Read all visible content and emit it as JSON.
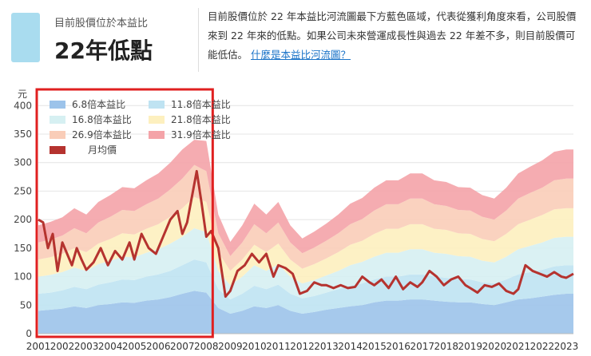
{
  "header": {
    "subtitle": "目前股價位於本益比",
    "headline": "22年低點",
    "description": "目前股價位於 22 年本益比河流圖最下方藍色區域，代表從獲利角度來看，公司股價來到 22 年來的低點。如果公司未來營運成長性與過去 22 年差不多，則目前股價可能低估。",
    "link_text": "什麼是本益比河流圖？",
    "swatch_color": "#a9dcef"
  },
  "chart_data": {
    "type": "area",
    "ylabel": "元",
    "ylim": [
      0,
      420
    ],
    "yticks": [
      0,
      50,
      100,
      150,
      200,
      250,
      300,
      350,
      400
    ],
    "x_ticks": [
      "2001",
      "2002",
      "2003",
      "2004",
      "2005",
      "2006",
      "2007",
      "2008",
      "2009",
      "2010",
      "2011",
      "2012",
      "2013",
      "2014",
      "2015",
      "2016",
      "2017",
      "2018",
      "2019",
      "2020",
      "2021",
      "2022",
      "2023"
    ],
    "xlim": [
      2001,
      2023.3
    ],
    "grid": true,
    "legend_position": "top-left",
    "highlight": {
      "x_from": 2001,
      "x_to": 2008.2,
      "color": "#e02020"
    },
    "band_colors": [
      "#9cc3ea",
      "#bfe3f2",
      "#d6f0f2",
      "#fdf0bf",
      "#f9cdb8",
      "#f4a3a8"
    ],
    "series": [
      {
        "name": "6.8倍本益比",
        "color": "#9cc3ea",
        "x": [
          2001,
          2001.5,
          2002,
          2002.5,
          2003,
          2003.5,
          2004,
          2004.5,
          2005,
          2005.5,
          2006,
          2006.5,
          2007,
          2007.5,
          2008,
          2008.5,
          2009,
          2009.5,
          2010,
          2010.5,
          2011,
          2011.5,
          2012,
          2012.5,
          2013,
          2013.5,
          2014,
          2014.5,
          2015,
          2015.5,
          2016,
          2016.5,
          2017,
          2017.5,
          2018,
          2018.5,
          2019,
          2019.5,
          2020,
          2020.5,
          2021,
          2021.5,
          2022,
          2022.5,
          2023,
          2023.3
        ],
        "values": [
          40,
          42,
          44,
          48,
          45,
          50,
          52,
          55,
          54,
          58,
          60,
          64,
          70,
          75,
          72,
          45,
          35,
          40,
          48,
          45,
          50,
          40,
          35,
          38,
          42,
          45,
          48,
          50,
          55,
          58,
          58,
          60,
          60,
          58,
          56,
          55,
          55,
          52,
          50,
          55,
          60,
          62,
          65,
          68,
          70,
          70
        ]
      },
      {
        "name": "11.8倍本益比",
        "color": "#bfe3f2",
        "x": [
          2001,
          2001.5,
          2002,
          2002.5,
          2003,
          2003.5,
          2004,
          2004.5,
          2005,
          2005.5,
          2006,
          2006.5,
          2007,
          2007.5,
          2008,
          2008.5,
          2009,
          2009.5,
          2010,
          2010.5,
          2011,
          2011.5,
          2012,
          2012.5,
          2013,
          2013.5,
          2014,
          2014.5,
          2015,
          2015.5,
          2016,
          2016.5,
          2017,
          2017.5,
          2018,
          2018.5,
          2019,
          2019.5,
          2020,
          2020.5,
          2021,
          2021.5,
          2022,
          2022.5,
          2023,
          2023.3
        ],
        "values": [
          70,
          72,
          76,
          82,
          78,
          86,
          90,
          95,
          94,
          100,
          104,
          110,
          120,
          130,
          125,
          78,
          60,
          70,
          84,
          78,
          86,
          70,
          62,
          66,
          72,
          78,
          84,
          88,
          95,
          100,
          100,
          104,
          104,
          100,
          98,
          96,
          95,
          90,
          88,
          95,
          104,
          108,
          112,
          118,
          120,
          120
        ]
      },
      {
        "name": "16.8倍本益比",
        "color": "#d6f0f2",
        "x": [
          2001,
          2001.5,
          2002,
          2002.5,
          2003,
          2003.5,
          2004,
          2004.5,
          2005,
          2005.5,
          2006,
          2006.5,
          2007,
          2007.5,
          2008,
          2008.5,
          2009,
          2009.5,
          2010,
          2010.5,
          2011,
          2011.5,
          2012,
          2012.5,
          2013,
          2013.5,
          2014,
          2014.5,
          2015,
          2015.5,
          2016,
          2016.5,
          2017,
          2017.5,
          2018,
          2018.5,
          2019,
          2019.5,
          2020,
          2020.5,
          2021,
          2021.5,
          2022,
          2022.5,
          2023,
          2023.3
        ],
        "values": [
          100,
          103,
          108,
          116,
          110,
          122,
          128,
          135,
          134,
          142,
          148,
          158,
          170,
          185,
          178,
          110,
          85,
          100,
          120,
          110,
          122,
          100,
          88,
          94,
          102,
          110,
          120,
          126,
          135,
          142,
          142,
          148,
          148,
          142,
          140,
          136,
          135,
          128,
          125,
          135,
          148,
          154,
          160,
          168,
          170,
          170
        ]
      },
      {
        "name": "21.8倍本益比",
        "color": "#fdf0bf",
        "x": [
          2001,
          2001.5,
          2002,
          2002.5,
          2003,
          2003.5,
          2004,
          2004.5,
          2005,
          2005.5,
          2006,
          2006.5,
          2007,
          2007.5,
          2008,
          2008.5,
          2009,
          2009.5,
          2010,
          2010.5,
          2011,
          2011.5,
          2012,
          2012.5,
          2013,
          2013.5,
          2014,
          2014.5,
          2015,
          2015.5,
          2016,
          2016.5,
          2017,
          2017.5,
          2018,
          2018.5,
          2019,
          2019.5,
          2020,
          2020.5,
          2021,
          2021.5,
          2022,
          2022.5,
          2023,
          2023.3
        ],
        "values": [
          130,
          134,
          140,
          150,
          143,
          158,
          166,
          176,
          174,
          184,
          192,
          205,
          220,
          240,
          231,
          143,
          110,
          130,
          156,
          143,
          158,
          130,
          114,
          122,
          132,
          143,
          156,
          163,
          175,
          184,
          184,
          192,
          192,
          184,
          182,
          176,
          175,
          166,
          162,
          175,
          192,
          200,
          208,
          218,
          220,
          220
        ]
      },
      {
        "name": "26.9倍本益比",
        "color": "#f9cdb8",
        "x": [
          2001,
          2001.5,
          2002,
          2002.5,
          2003,
          2003.5,
          2004,
          2004.5,
          2005,
          2005.5,
          2006,
          2006.5,
          2007,
          2007.5,
          2008,
          2008.5,
          2009,
          2009.5,
          2010,
          2010.5,
          2011,
          2011.5,
          2012,
          2012.5,
          2013,
          2013.5,
          2014,
          2014.5,
          2015,
          2015.5,
          2016,
          2016.5,
          2017,
          2017.5,
          2018,
          2018.5,
          2019,
          2019.5,
          2020,
          2020.5,
          2021,
          2021.5,
          2022,
          2022.5,
          2023,
          2023.3
        ],
        "values": [
          160,
          165,
          172,
          185,
          176,
          195,
          205,
          217,
          215,
          227,
          237,
          253,
          272,
          296,
          285,
          176,
          136,
          160,
          192,
          176,
          195,
          160,
          141,
          151,
          163,
          176,
          192,
          201,
          216,
          227,
          227,
          237,
          237,
          227,
          224,
          217,
          216,
          205,
          200,
          216,
          237,
          247,
          256,
          269,
          272,
          272
        ]
      },
      {
        "name": "31.9倍本益比",
        "color": "#f4a3a8",
        "x": [
          2001,
          2001.5,
          2002,
          2002.5,
          2003,
          2003.5,
          2004,
          2004.5,
          2005,
          2005.5,
          2006,
          2006.5,
          2007,
          2007.5,
          2008,
          2008.5,
          2009,
          2009.5,
          2010,
          2010.5,
          2011,
          2011.5,
          2012,
          2012.5,
          2013,
          2013.5,
          2014,
          2014.5,
          2015,
          2015.5,
          2016,
          2016.5,
          2017,
          2017.5,
          2018,
          2018.5,
          2019,
          2019.5,
          2020,
          2020.5,
          2021,
          2021.5,
          2022,
          2022.5,
          2023,
          2023.3
        ],
        "values": [
          190,
          196,
          204,
          220,
          209,
          231,
          243,
          257,
          255,
          269,
          281,
          300,
          323,
          340,
          338,
          209,
          161,
          190,
          228,
          209,
          231,
          190,
          167,
          179,
          193,
          209,
          228,
          238,
          256,
          269,
          269,
          281,
          281,
          269,
          266,
          257,
          256,
          243,
          237,
          256,
          281,
          293,
          304,
          319,
          323,
          323
        ]
      },
      {
        "name": "月均價",
        "color": "#b5332f",
        "x": [
          2001,
          2001.2,
          2001.4,
          2001.6,
          2001.8,
          2002,
          2002.2,
          2002.4,
          2002.6,
          2002.8,
          2003,
          2003.3,
          2003.6,
          2003.9,
          2004.2,
          2004.5,
          2004.8,
          2005,
          2005.3,
          2005.6,
          2005.9,
          2006.2,
          2006.5,
          2006.8,
          2007,
          2007.2,
          2007.4,
          2007.6,
          2007.8,
          2008,
          2008.2,
          2008.5,
          2008.8,
          2009,
          2009.3,
          2009.6,
          2009.9,
          2010.2,
          2010.5,
          2010.8,
          2011,
          2011.3,
          2011.6,
          2011.9,
          2012.2,
          2012.5,
          2012.8,
          2013,
          2013.3,
          2013.6,
          2013.9,
          2014.2,
          2014.5,
          2014.8,
          2015,
          2015.3,
          2015.6,
          2015.9,
          2016.2,
          2016.5,
          2016.8,
          2017,
          2017.3,
          2017.6,
          2017.9,
          2018.2,
          2018.5,
          2018.8,
          2019,
          2019.3,
          2019.6,
          2019.9,
          2020.2,
          2020.5,
          2020.8,
          2021,
          2021.3,
          2021.6,
          2021.9,
          2022.2,
          2022.5,
          2022.8,
          2023,
          2023.3
        ],
        "values": [
          200,
          195,
          150,
          175,
          110,
          160,
          140,
          120,
          150,
          130,
          112,
          125,
          150,
          120,
          145,
          130,
          160,
          130,
          175,
          150,
          140,
          170,
          200,
          215,
          175,
          195,
          240,
          285,
          230,
          170,
          180,
          150,
          65,
          75,
          110,
          120,
          140,
          125,
          140,
          100,
          120,
          115,
          105,
          70,
          75,
          90,
          85,
          85,
          80,
          85,
          80,
          82,
          100,
          90,
          85,
          95,
          80,
          100,
          78,
          90,
          82,
          90,
          110,
          100,
          85,
          95,
          100,
          85,
          80,
          72,
          85,
          82,
          88,
          75,
          70,
          78,
          120,
          110,
          105,
          100,
          108,
          100,
          98,
          105
        ]
      }
    ]
  }
}
